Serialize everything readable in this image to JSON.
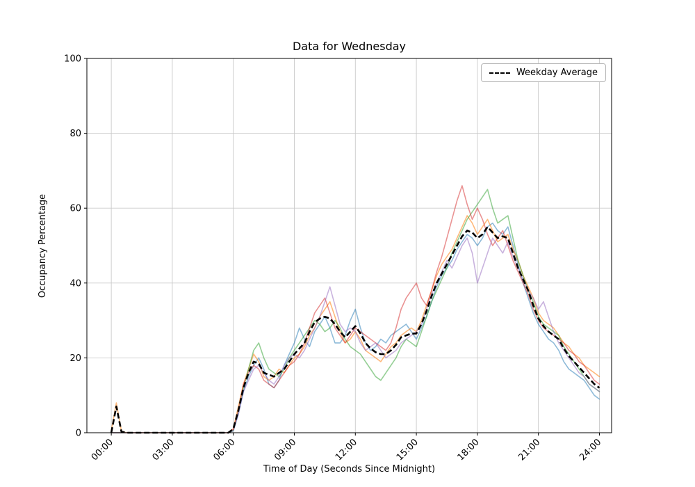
{
  "chart_data": {
    "type": "line",
    "title": "Data for Wednesday",
    "xlabel": "Time of Day (Seconds Since Midnight)",
    "ylabel": "Occupancy Percentage",
    "grid": true,
    "xlim_seconds": [
      -4320,
      88560
    ],
    "ylim": [
      0,
      100
    ],
    "x_ticks": {
      "positions": [
        0,
        10800,
        21600,
        32400,
        43200,
        54000,
        64800,
        75600,
        86400
      ],
      "labels": [
        "00:00",
        "03:00",
        "06:00",
        "09:00",
        "12:00",
        "15:00",
        "18:00",
        "21:00",
        "24:00"
      ],
      "rotation": 45
    },
    "y_ticks": {
      "positions": [
        0,
        20,
        40,
        60,
        80,
        100
      ],
      "labels": [
        "0",
        "20",
        "40",
        "60",
        "80",
        "100"
      ]
    },
    "x": [
      0,
      900,
      1800,
      2700,
      3600,
      4500,
      5400,
      6300,
      7200,
      8100,
      9000,
      9900,
      10800,
      11700,
      12600,
      13500,
      14400,
      15300,
      16200,
      17100,
      18000,
      18900,
      19800,
      20700,
      21600,
      22500,
      23400,
      24300,
      25200,
      26100,
      27000,
      27900,
      28800,
      29700,
      30600,
      31500,
      32400,
      33300,
      34200,
      35100,
      36000,
      36900,
      37800,
      38700,
      39600,
      40500,
      41400,
      42300,
      43200,
      44100,
      45000,
      45900,
      46800,
      47700,
      48600,
      49500,
      50400,
      51300,
      52200,
      53100,
      54000,
      54900,
      55800,
      56700,
      57600,
      58500,
      59400,
      60300,
      61200,
      62100,
      63000,
      63900,
      64800,
      65700,
      66600,
      67500,
      68400,
      69300,
      70200,
      71100,
      72000,
      72900,
      73800,
      74700,
      75600,
      76500,
      77400,
      78300,
      79200,
      80100,
      81000,
      81900,
      82800,
      83700,
      84600,
      85500,
      86400
    ],
    "series": [
      {
        "color": "#1f77b4",
        "opacity": 0.5,
        "line_width": 1.6,
        "values": [
          0,
          0,
          0,
          0,
          0,
          0,
          0,
          0,
          0,
          0,
          0,
          0,
          0,
          0,
          0,
          0,
          0,
          0,
          0,
          0,
          0,
          0,
          0,
          0,
          0.5,
          5,
          11,
          15,
          18,
          20,
          17,
          13,
          12,
          14,
          18,
          21,
          24,
          28,
          25,
          23,
          27,
          29,
          31,
          28,
          24,
          24,
          26,
          30,
          33,
          28,
          24,
          22,
          23,
          25,
          24,
          26,
          27,
          28,
          29,
          27,
          25,
          28,
          31,
          35,
          39,
          42,
          44,
          46,
          49,
          51,
          53,
          52,
          50,
          52,
          55,
          56,
          54,
          53,
          55,
          50,
          45,
          40,
          36,
          32,
          29,
          27,
          25,
          24,
          22,
          19,
          17,
          16,
          15,
          14,
          12,
          10,
          9
        ]
      },
      {
        "color": "#ff7f0e",
        "opacity": 0.55,
        "line_width": 1.6,
        "values": [
          0.5,
          8,
          0.4,
          0,
          0,
          0,
          0,
          0,
          0,
          0,
          0,
          0,
          0,
          0,
          0,
          0,
          0,
          0,
          0,
          0,
          0,
          0,
          0,
          0,
          1,
          7,
          13,
          17,
          21,
          19,
          15,
          14,
          15,
          17,
          16,
          18,
          20,
          21,
          23,
          26,
          28,
          31,
          33,
          35,
          31,
          27,
          24,
          25,
          27,
          25,
          22,
          21,
          20,
          19,
          21,
          23,
          24,
          26,
          27,
          28,
          27,
          30,
          34,
          38,
          42,
          45,
          47,
          49,
          52,
          55,
          58,
          56,
          53,
          55,
          57,
          54,
          51,
          52,
          53,
          49,
          46,
          42,
          39,
          36,
          32,
          30,
          29,
          28,
          26,
          24,
          23,
          21,
          20,
          18,
          17,
          16,
          15
        ]
      },
      {
        "color": "#2ca02c",
        "opacity": 0.5,
        "line_width": 1.6,
        "values": [
          0,
          0,
          0,
          0,
          0,
          0,
          0,
          0,
          0,
          0,
          0,
          0,
          0,
          0,
          0,
          0,
          0,
          0,
          0,
          0,
          0,
          0,
          0,
          0,
          0.5,
          6,
          12,
          17,
          22,
          24,
          20,
          17,
          16,
          15,
          17,
          20,
          22,
          24,
          26,
          28,
          30,
          29,
          27,
          28,
          30,
          28,
          25,
          23,
          22,
          21,
          19,
          17,
          15,
          14,
          16,
          18,
          20,
          23,
          25,
          24,
          23,
          27,
          31,
          35,
          38,
          41,
          44,
          48,
          51,
          54,
          57,
          59,
          61,
          63,
          65,
          60,
          56,
          57,
          58,
          52,
          46,
          42,
          38,
          35,
          31,
          29,
          28,
          27,
          26,
          23,
          21,
          19,
          17,
          15,
          13,
          12,
          11
        ]
      },
      {
        "color": "#d62728",
        "opacity": 0.5,
        "line_width": 1.6,
        "values": [
          0,
          0,
          0,
          0,
          0,
          0,
          0,
          0,
          0,
          0,
          0,
          0,
          0,
          0,
          0,
          0,
          0,
          0,
          0,
          0,
          0,
          0,
          0,
          0,
          1,
          6,
          13,
          16,
          18,
          17,
          14,
          13,
          12,
          14,
          16,
          18,
          19,
          21,
          24,
          28,
          32,
          34,
          36,
          32,
          28,
          26,
          24,
          26,
          28,
          27,
          26,
          25,
          24,
          23,
          22,
          24,
          28,
          33,
          36,
          38,
          40,
          36,
          34,
          38,
          43,
          47,
          52,
          57,
          62,
          66,
          61,
          57,
          60,
          57,
          53,
          50,
          52,
          54,
          50,
          46,
          43,
          40,
          37,
          33,
          30,
          28,
          27,
          26,
          25,
          24,
          22,
          21,
          19,
          18,
          16,
          14,
          13
        ]
      },
      {
        "color": "#9467bd",
        "opacity": 0.5,
        "line_width": 1.6,
        "values": [
          0,
          0,
          0,
          0,
          0,
          0,
          0,
          0,
          0,
          0,
          0,
          0,
          0,
          0,
          0,
          0,
          0,
          0,
          0,
          0,
          0,
          0,
          0,
          0,
          0.5,
          5,
          11,
          14,
          17,
          18,
          16,
          14,
          13,
          15,
          18,
          20,
          21,
          20,
          22,
          25,
          28,
          31,
          35,
          39,
          34,
          29,
          27,
          28,
          27,
          24,
          22,
          23,
          24,
          22,
          20,
          21,
          22,
          24,
          25,
          26,
          27,
          29,
          33,
          37,
          40,
          43,
          46,
          44,
          47,
          50,
          52,
          48,
          40,
          44,
          48,
          52,
          50,
          48,
          51,
          47,
          44,
          41,
          38,
          36,
          33,
          35,
          31,
          27,
          24,
          22,
          20,
          18,
          16,
          15,
          13,
          12,
          11
        ]
      }
    ],
    "average_series": {
      "color": "#000000",
      "line_width": 2.6,
      "dash": [
        8,
        4
      ],
      "values": [
        0,
        7,
        0.3,
        0,
        0,
        0,
        0,
        0,
        0,
        0,
        0,
        0,
        0,
        0,
        0,
        0,
        0,
        0,
        0,
        0,
        0,
        0,
        0,
        0,
        1,
        6,
        12,
        16,
        19,
        18.5,
        16,
        15.5,
        15,
        16,
        17,
        19,
        21,
        22.5,
        24,
        27,
        29.5,
        30.5,
        31,
        30.5,
        29,
        27,
        25.5,
        27,
        28.5,
        26.5,
        24,
        22.5,
        21.5,
        21,
        21,
        22,
        23.5,
        25.5,
        26,
        26.5,
        26.5,
        29,
        32.5,
        36.5,
        40,
        42.5,
        45,
        47.5,
        50,
        52.5,
        54,
        53.5,
        52,
        53,
        55,
        53.5,
        52,
        52.5,
        52,
        48,
        44,
        41,
        38,
        34,
        30.5,
        28.5,
        27,
        26,
        25,
        22.5,
        20.5,
        19,
        17.5,
        16,
        14.5,
        13,
        12
      ]
    },
    "legend": {
      "label": "Weekday Average",
      "position": "upper right"
    },
    "colors": {
      "grid": "#c9c9c9",
      "spine": "#000000",
      "background": "#ffffff"
    }
  }
}
